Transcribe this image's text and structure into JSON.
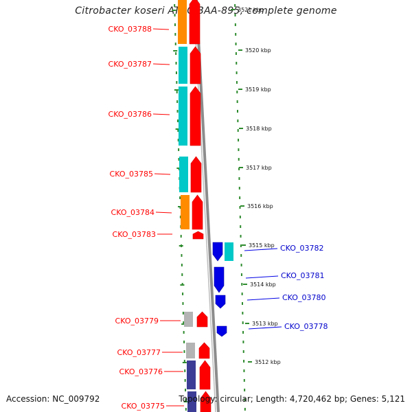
{
  "title": "Citrobacter koseri ATCC BAA-895, complete genome",
  "accession": "Accession: NC_009792",
  "topology": "Topology: circular; Length: 4,720,462 bp; Genes: 5,121",
  "colors": {
    "forward_gene": "#ff0000",
    "reverse_gene": "#0000e6",
    "cog_cyan": "#00c8c8",
    "cog_orange": "#ff8c00",
    "cog_gray": "#b4b4b4",
    "cog_purple": "#3c3c96",
    "tick_green": "#2e8b2e",
    "backbone": "#8c8c8c"
  },
  "kbp_ticks": [
    "3521 kbp",
    "3520 kbp",
    "3519 kbp",
    "3518 kbp",
    "3517 kbp",
    "3516 kbp",
    "3515 kbp",
    "3514 kbp",
    "3513 kbp",
    "3512 kbp"
  ],
  "genes_forward": [
    {
      "label": "CKO_03788",
      "cog": "cog_orange"
    },
    {
      "label": "CKO_03787",
      "cog": "cog_cyan"
    },
    {
      "label": "CKO_03786",
      "cog": "cog_cyan"
    },
    {
      "label": "CKO_03785",
      "cog": "cog_cyan"
    },
    {
      "label": "CKO_03784",
      "cog": "cog_orange"
    },
    {
      "label": "CKO_03783",
      "cog": ""
    },
    {
      "label": "CKO_03779",
      "cog": "cog_gray"
    },
    {
      "label": "CKO_03777",
      "cog": "cog_gray"
    },
    {
      "label": "CKO_03776",
      "cog": "cog_purple"
    },
    {
      "label": "CKO_03775",
      "cog": "cog_purple"
    }
  ],
  "genes_reverse": [
    {
      "label": "CKO_03782",
      "cog": "cog_cyan"
    },
    {
      "label": "CKO_03781",
      "cog": ""
    },
    {
      "label": "CKO_03780",
      "cog": ""
    },
    {
      "label": "CKO_03778",
      "cog": ""
    }
  ]
}
